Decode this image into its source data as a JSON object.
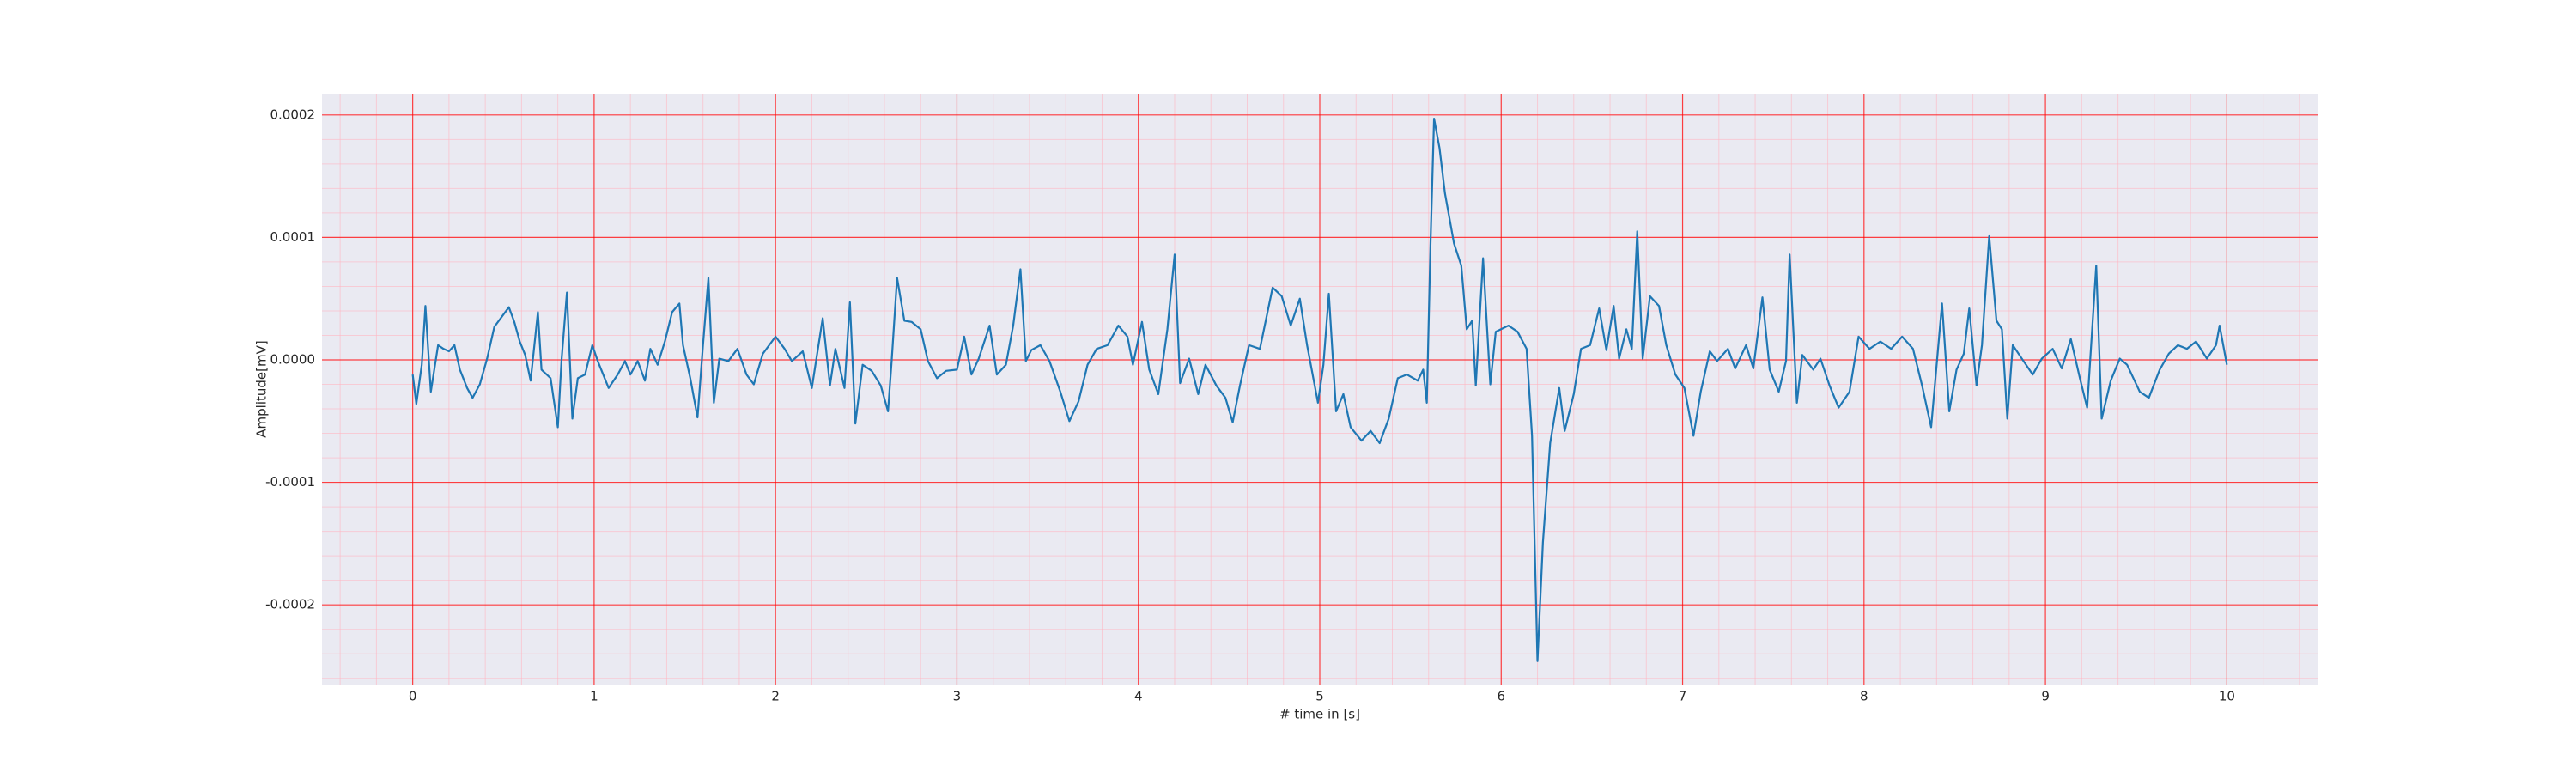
{
  "chart_data": {
    "type": "line",
    "xlabel": "# time in [s]",
    "ylabel": "Amplitude[mV]",
    "xlim": [
      -0.5,
      10.5
    ],
    "xticks": [
      0,
      1,
      2,
      3,
      4,
      5,
      6,
      7,
      8,
      9,
      10
    ],
    "ylim": [
      -0.0002658,
      0.0002174
    ],
    "yticks": [
      -0.0002,
      -0.0001,
      {
        "value": 0,
        "label": "0.0000"
      },
      0.0001,
      0.0002
    ],
    "grid": true,
    "minor_grid": true,
    "background": "#eaeaf2",
    "grid_color": "#ff0000",
    "minor_grid_color": "#ffb6c1",
    "x": [
      0,
      0.02,
      0.05,
      0.07,
      0.1,
      0.14,
      0.17,
      0.2,
      0.23,
      0.26,
      0.3,
      0.33,
      0.37,
      0.41,
      0.45,
      0.53,
      0.56,
      0.59,
      0.62,
      0.65,
      0.69,
      0.71,
      0.76,
      0.8,
      0.82,
      0.85,
      0.88,
      0.91,
      0.95,
      0.99,
      1.02,
      1.08,
      1.13,
      1.17,
      1.2,
      1.24,
      1.28,
      1.31,
      1.35,
      1.39,
      1.43,
      1.47,
      1.49,
      1.53,
      1.57,
      1.6,
      1.63,
      1.66,
      1.69,
      1.74,
      1.79,
      1.84,
      1.88,
      1.93,
      2.0,
      2.05,
      2.09,
      2.15,
      2.2,
      2.26,
      2.3,
      2.33,
      2.38,
      2.41,
      2.44,
      2.48,
      2.53,
      2.58,
      2.62,
      2.64,
      2.67,
      2.71,
      2.75,
      2.8,
      2.84,
      2.89,
      2.94,
      3.0,
      3.04,
      3.08,
      3.12,
      3.18,
      3.22,
      3.27,
      3.31,
      3.35,
      3.38,
      3.41,
      3.46,
      3.51,
      3.57,
      3.62,
      3.67,
      3.72,
      3.77,
      3.83,
      3.89,
      3.94,
      3.97,
      4.02,
      4.06,
      4.11,
      4.16,
      4.2,
      4.23,
      4.28,
      4.33,
      4.37,
      4.43,
      4.48,
      4.52,
      4.56,
      4.61,
      4.67,
      4.74,
      4.79,
      4.84,
      4.89,
      4.93,
      4.99,
      5.02,
      5.05,
      5.09,
      5.13,
      5.17,
      5.23,
      5.28,
      5.33,
      5.38,
      5.43,
      5.48,
      5.54,
      5.57,
      5.59,
      5.61,
      5.63,
      5.66,
      5.69,
      5.74,
      5.78,
      5.81,
      5.84,
      5.86,
      5.9,
      5.94,
      5.97,
      6.04,
      6.09,
      6.14,
      6.17,
      6.2,
      6.23,
      6.27,
      6.32,
      6.35,
      6.4,
      6.44,
      6.49,
      6.54,
      6.58,
      6.62,
      6.65,
      6.69,
      6.72,
      6.75,
      6.78,
      6.82,
      6.87,
      6.91,
      6.96,
      7.01,
      7.06,
      7.1,
      7.15,
      7.19,
      7.25,
      7.29,
      7.35,
      7.39,
      7.44,
      7.48,
      7.53,
      7.57,
      7.59,
      7.63,
      7.66,
      7.72,
      7.76,
      7.81,
      7.86,
      7.92,
      7.97,
      8.03,
      8.09,
      8.15,
      8.21,
      8.27,
      8.32,
      8.37,
      8.43,
      8.47,
      8.51,
      8.55,
      8.58,
      8.62,
      8.65,
      8.69,
      8.73,
      8.76,
      8.79,
      8.82,
      8.87,
      8.93,
      8.98,
      9.04,
      9.09,
      9.14,
      9.19,
      9.23,
      9.28,
      9.31,
      9.36,
      9.41,
      9.45,
      9.52,
      9.57,
      9.63,
      9.68,
      9.73,
      9.78,
      9.83,
      9.89,
      9.94,
      9.96,
      10.0
    ],
    "series": [
      {
        "color": "#1f77b4",
        "values": [
          -1.2e-05,
          -3.6e-05,
          -4e-06,
          4.4e-05,
          -2.6e-05,
          1.2e-05,
          9e-06,
          7e-06,
          1.2e-05,
          -8e-06,
          -2.3e-05,
          -3.1e-05,
          -2e-05,
          1e-06,
          2.7e-05,
          4.3e-05,
          3.1e-05,
          1.5e-05,
          4e-06,
          -1.7e-05,
          3.9e-05,
          -8e-06,
          -1.5e-05,
          -5.5e-05,
          -1e-06,
          5.5e-05,
          -4.8e-05,
          -1.5e-05,
          -1.2e-05,
          1.2e-05,
          -1e-06,
          -2.3e-05,
          -1.2e-05,
          -1e-06,
          -1.2e-05,
          -1e-06,
          -1.7e-05,
          9e-06,
          -4e-06,
          1.5e-05,
          3.9e-05,
          4.6e-05,
          1.2e-05,
          -1.5e-05,
          -4.7e-05,
          1.2e-05,
          6.7e-05,
          -3.5e-05,
          1e-06,
          -1e-06,
          9e-06,
          -1.2e-05,
          -2e-05,
          5e-06,
          1.9e-05,
          9e-06,
          -1e-06,
          7e-06,
          -2.3e-05,
          3.4e-05,
          -2.1e-05,
          9e-06,
          -2.3e-05,
          4.7e-05,
          -5.2e-05,
          -4e-06,
          -9e-06,
          -2.1e-05,
          -4.2e-05,
          -1e-06,
          6.7e-05,
          3.2e-05,
          3.1e-05,
          2.5e-05,
          -1e-06,
          -1.5e-05,
          -9e-06,
          -8e-06,
          1.9e-05,
          -1.2e-05,
          1e-06,
          2.8e-05,
          -1.2e-05,
          -4e-06,
          2.8e-05,
          7.4e-05,
          -1e-06,
          8e-06,
          1.2e-05,
          -1e-06,
          -2.6e-05,
          -5e-05,
          -3.4e-05,
          -4e-06,
          9e-06,
          1.2e-05,
          2.8e-05,
          1.9e-05,
          -4e-06,
          3.1e-05,
          -8e-06,
          -2.8e-05,
          2.5e-05,
          8.6e-05,
          -1.9e-05,
          1e-06,
          -2.8e-05,
          -4e-06,
          -2.1e-05,
          -3.1e-05,
          -5.1e-05,
          -2.1e-05,
          1.2e-05,
          9e-06,
          5.9e-05,
          5.2e-05,
          2.8e-05,
          5e-05,
          1.2e-05,
          -3.5e-05,
          -4e-06,
          5.4e-05,
          -4.2e-05,
          -2.8e-05,
          -5.5e-05,
          -6.6e-05,
          -5.8e-05,
          -6.8e-05,
          -4.8e-05,
          -1.5e-05,
          -1.2e-05,
          -1.7e-05,
          -8e-06,
          -3.5e-05,
          9.3e-05,
          0.000197,
          0.000173,
          0.000136,
          9.5e-05,
          7.7e-05,
          2.5e-05,
          3.2e-05,
          -2.1e-05,
          8.3e-05,
          -2e-05,
          2.3e-05,
          2.8e-05,
          2.3e-05,
          9e-06,
          -6.2e-05,
          -0.000246,
          -0.000149,
          -6.8e-05,
          -2.3e-05,
          -5.8e-05,
          -2.8e-05,
          9e-06,
          1.2e-05,
          4.2e-05,
          8e-06,
          4.4e-05,
          1e-06,
          2.5e-05,
          9e-06,
          0.000105,
          1e-06,
          5.2e-05,
          4.4e-05,
          1.2e-05,
          -1.2e-05,
          -2.3e-05,
          -6.2e-05,
          -2.6e-05,
          7e-06,
          -1e-06,
          9e-06,
          -7e-06,
          1.2e-05,
          -7e-06,
          5.1e-05,
          -8e-06,
          -2.6e-05,
          -1e-06,
          8.6e-05,
          -3.5e-05,
          4e-06,
          -8e-06,
          1e-06,
          -2.1e-05,
          -3.9e-05,
          -2.6e-05,
          1.9e-05,
          9e-06,
          1.5e-05,
          9e-06,
          1.9e-05,
          9e-06,
          -2.1e-05,
          -5.5e-05,
          4.6e-05,
          -4.2e-05,
          -8e-06,
          5e-06,
          4.2e-05,
          -2.1e-05,
          1.2e-05,
          0.000101,
          3.2e-05,
          2.5e-05,
          -4.8e-05,
          1.2e-05,
          1e-06,
          -1.2e-05,
          1e-06,
          9e-06,
          -7e-06,
          1.7e-05,
          -1.5e-05,
          -3.9e-05,
          7.7e-05,
          -4.8e-05,
          -1.7e-05,
          1e-06,
          -4e-06,
          -2.6e-05,
          -3.1e-05,
          -8e-06,
          5e-06,
          1.2e-05,
          9e-06,
          1.5e-05,
          1e-06,
          1.2e-05,
          2.8e-05,
          -4e-06
        ]
      }
    ]
  }
}
